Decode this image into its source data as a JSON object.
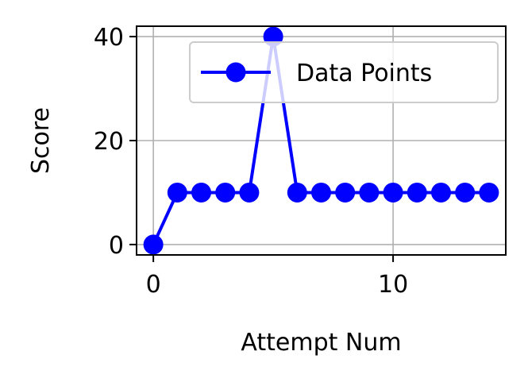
{
  "chart_data": {
    "type": "line",
    "title": "",
    "xlabel": "Attempt Num",
    "ylabel": "Score",
    "xlim": [
      -0.7,
      14.7
    ],
    "ylim": [
      -2,
      42
    ],
    "xticks": [
      0,
      10
    ],
    "yticks": [
      0,
      20,
      40
    ],
    "xtick_labels": [
      "0",
      "10"
    ],
    "ytick_labels": [
      "0",
      "20",
      "40"
    ],
    "grid": true,
    "legend_position": "top-right",
    "series": [
      {
        "name": "Data Points",
        "color": "#0000ff",
        "marker": "circle",
        "x": [
          0,
          1,
          2,
          3,
          4,
          5,
          6,
          7,
          8,
          9,
          10,
          11,
          12,
          13,
          14
        ],
        "values": [
          0,
          10,
          10,
          10,
          10,
          40,
          10,
          10,
          10,
          10,
          10,
          10,
          10,
          10,
          10
        ]
      }
    ]
  }
}
